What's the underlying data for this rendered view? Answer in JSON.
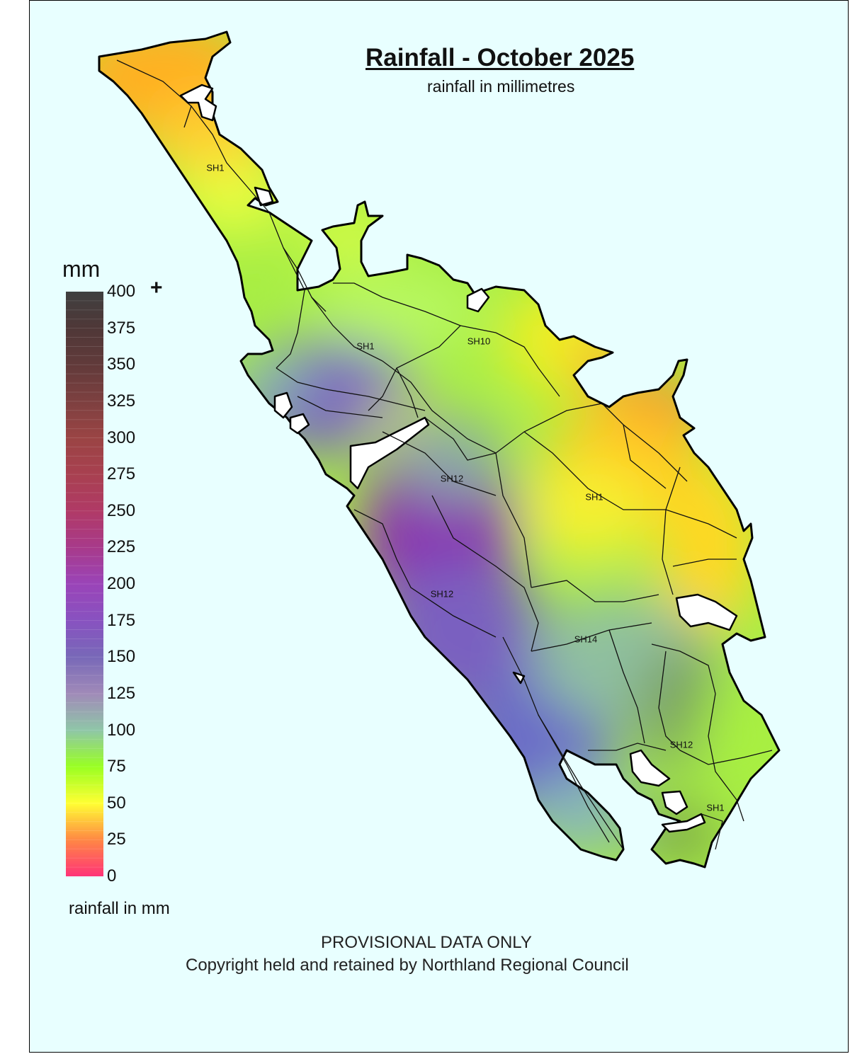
{
  "map": {
    "title": "Rainfall - October 2025",
    "subtitle": "rainfall in millimetres",
    "footer_notice": "PROVISIONAL DATA ONLY",
    "footer_copyright": "Copyright held and retained by Northland Regional Council",
    "background_color": "#e8ffff",
    "road_labels": [
      "SH1",
      "SH1",
      "SH10",
      "SH12",
      "SH1",
      "SH12",
      "SH14",
      "SH12",
      "SH1"
    ]
  },
  "legend": {
    "unit": "mm",
    "overflow_marker": "+",
    "caption": "rainfall in mm",
    "ticks": [
      "400",
      "375",
      "350",
      "325",
      "300",
      "275",
      "250",
      "225",
      "200",
      "175",
      "150",
      "125",
      "100",
      "75",
      "50",
      "25",
      "0"
    ],
    "color_stops": [
      {
        "value": 400,
        "color": "#3f3f3f"
      },
      {
        "value": 375,
        "color": "#4f3838"
      },
      {
        "value": 350,
        "color": "#613a3a"
      },
      {
        "value": 325,
        "color": "#7d4040"
      },
      {
        "value": 300,
        "color": "#9a4444"
      },
      {
        "value": 275,
        "color": "#a84050"
      },
      {
        "value": 250,
        "color": "#b03a66"
      },
      {
        "value": 225,
        "color": "#a83a8a"
      },
      {
        "value": 200,
        "color": "#9a44b8"
      },
      {
        "value": 175,
        "color": "#8852c0"
      },
      {
        "value": 150,
        "color": "#7868b8"
      },
      {
        "value": 125,
        "color": "#a08ab8"
      },
      {
        "value": 100,
        "color": "#8fc6a8"
      },
      {
        "value": 75,
        "color": "#99ff22"
      },
      {
        "value": 50,
        "color": "#ffff33"
      },
      {
        "value": 25,
        "color": "#ff8844"
      },
      {
        "value": 0,
        "color": "#ff3377"
      }
    ]
  }
}
